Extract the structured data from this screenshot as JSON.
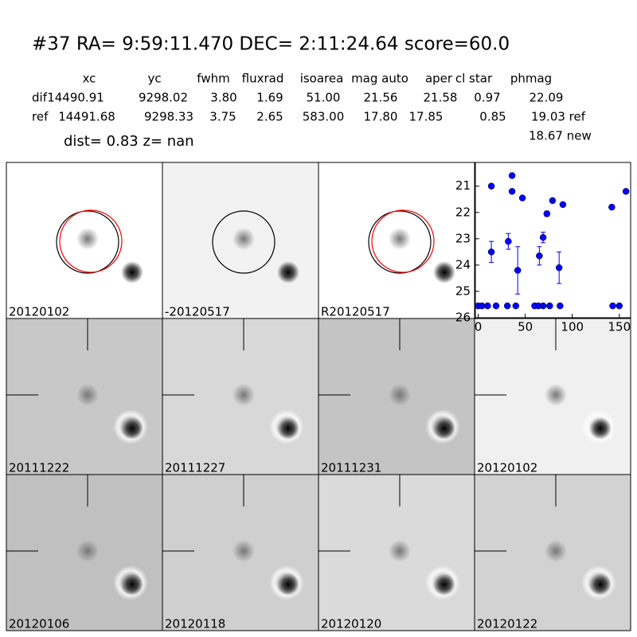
{
  "header": {
    "title": "#37   RA= 9:59:11.470 DEC= 2:11:24.64      score=60.0"
  },
  "table": {
    "columns": [
      "xc",
      "yc",
      "fwhm",
      "fluxrad",
      "isoarea",
      "mag auto",
      "aper",
      "cl star",
      "phmag"
    ],
    "rows": [
      {
        "label": "dif",
        "cells": [
          "14490.91",
          "9298.02",
          "3.80",
          "1.69",
          "51.00",
          "21.56",
          "21.58",
          "0.97",
          "22.09"
        ]
      },
      {
        "label": "ref",
        "cells": [
          "14491.68",
          "9298.33",
          "3.75",
          "2.65",
          "583.00",
          "17.80",
          "17.85",
          "0.85",
          "19.03 ref"
        ]
      }
    ],
    "extra": "18.67 new"
  },
  "summary": "dist=  0.83      z=   nan",
  "panels": [
    {
      "label": "20120102",
      "color": "#000000"
    },
    {
      "label": "-20120517",
      "color": "#000000"
    },
    {
      "label": "R20120517",
      "color": "#000000"
    },
    {
      "label": "20111222",
      "color": "#000000"
    },
    {
      "label": "20111227",
      "color": "#000000"
    },
    {
      "label": "20111231",
      "color": "#000000"
    },
    {
      "label": "20120102",
      "color": "#ff0000"
    },
    {
      "label": "20120106",
      "color": "#000000"
    },
    {
      "label": "20120118",
      "color": "#000000"
    },
    {
      "label": "20120120",
      "color": "#000000"
    },
    {
      "label": "20120122",
      "color": "#000000"
    }
  ],
  "chart_data": {
    "type": "scatter",
    "xlim": [
      -3,
      162
    ],
    "xticks": [
      0,
      50,
      100,
      150
    ],
    "ylim": [
      26,
      20.1
    ],
    "yticks": [
      21,
      22,
      23,
      24,
      25,
      26
    ],
    "series": [
      {
        "color": "#0000ff",
        "x": [
          0,
          4,
          10,
          19,
          31,
          40,
          60,
          64,
          69,
          76,
          87,
          143,
          150,
          14,
          14,
          36,
          36,
          32,
          47,
          42,
          65,
          69,
          73,
          79,
          86,
          90,
          142,
          157
        ],
        "values": [
          25.55,
          25.55,
          25.55,
          25.55,
          25.55,
          25.55,
          25.55,
          25.55,
          25.55,
          25.55,
          25.55,
          25.55,
          25.55,
          23.5,
          21.0,
          20.6,
          21.2,
          23.1,
          21.45,
          24.2,
          23.65,
          22.95,
          22.05,
          21.55,
          24.1,
          21.7,
          21.8,
          21.2
        ],
        "errors": [
          null,
          null,
          null,
          null,
          null,
          null,
          null,
          null,
          null,
          null,
          null,
          null,
          null,
          0.4,
          null,
          null,
          null,
          0.3,
          null,
          0.9,
          0.35,
          0.2,
          0.1,
          null,
          0.6,
          null,
          null,
          null
        ]
      }
    ]
  }
}
